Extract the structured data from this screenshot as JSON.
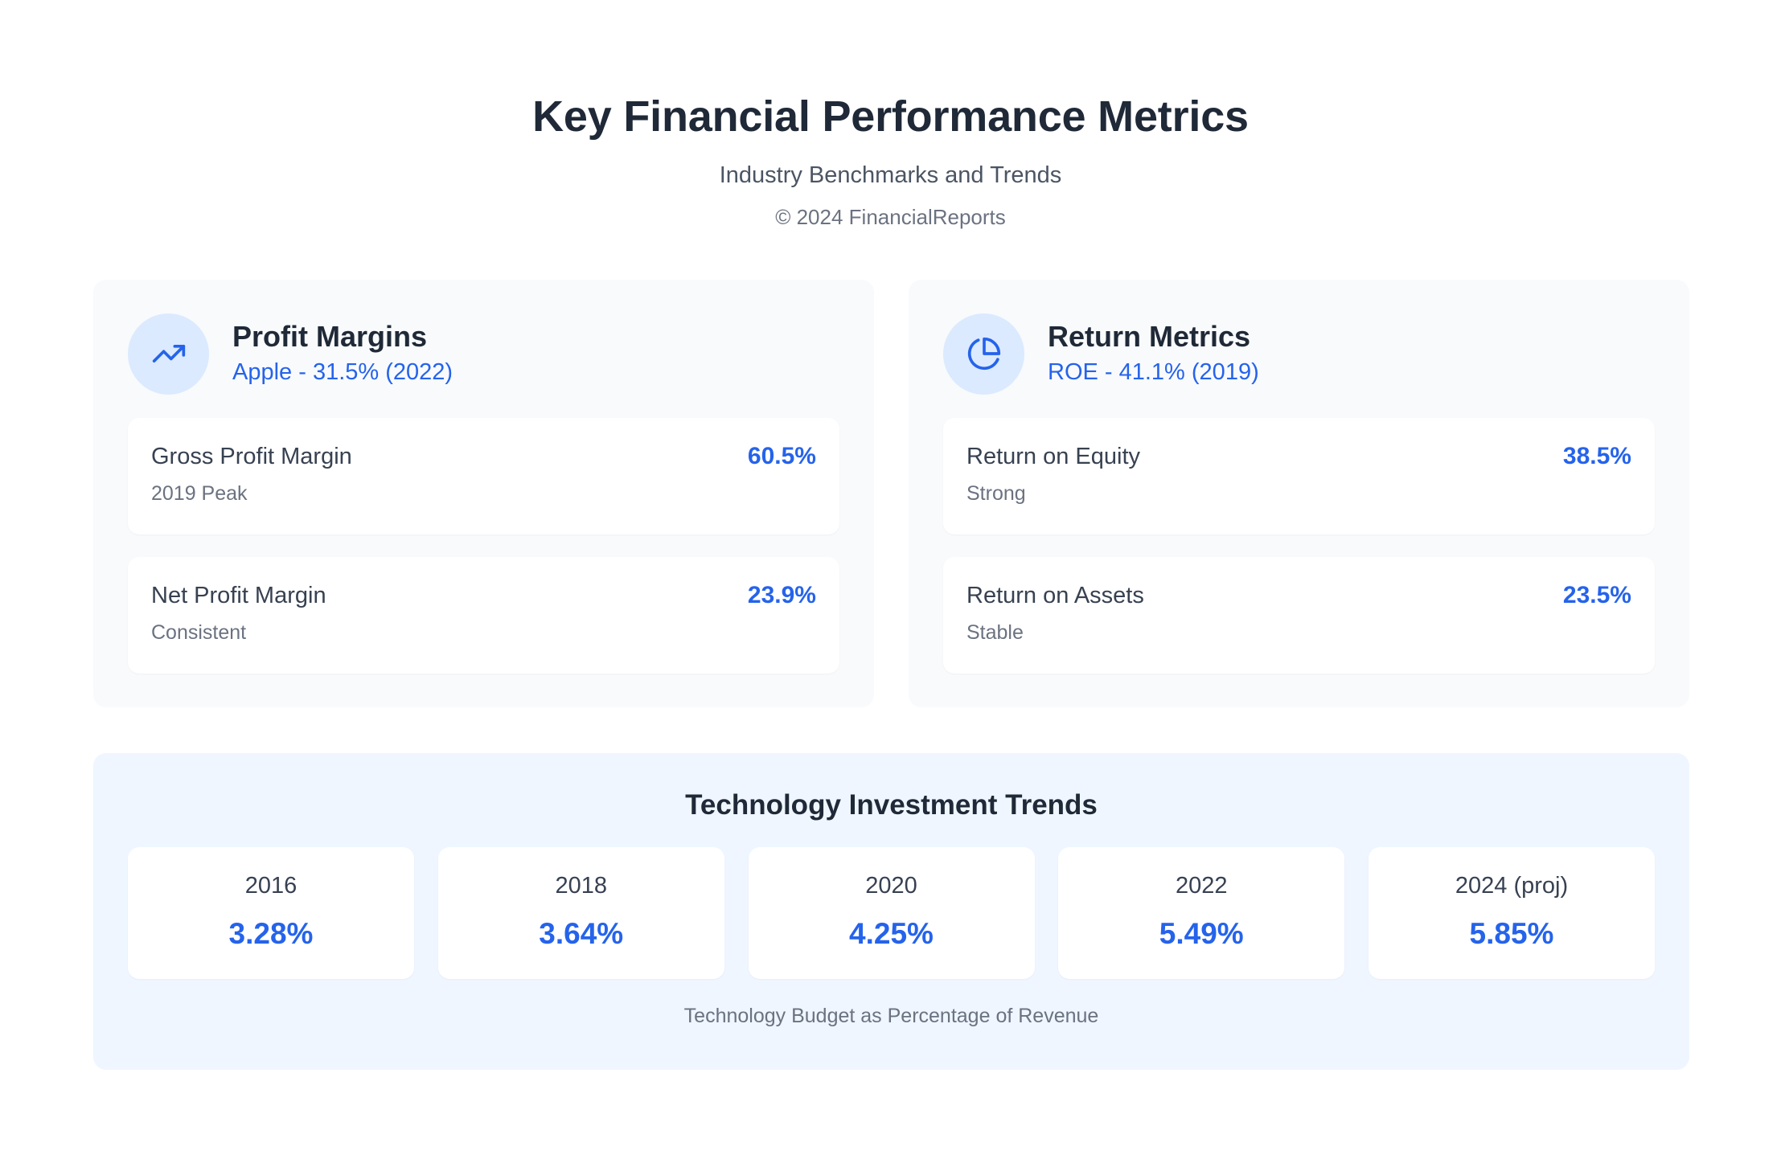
{
  "header": {
    "title": "Key Financial Performance Metrics",
    "subtitle": "Industry Benchmarks and Trends",
    "copyright": "© 2024 FinancialReports"
  },
  "profit_card": {
    "icon": "trending-up-icon",
    "title": "Profit Margins",
    "highlight": "Apple - 31.5% (2022)",
    "metrics": [
      {
        "name": "Gross Profit Margin",
        "note": "2019 Peak",
        "value": "60.5%"
      },
      {
        "name": "Net Profit Margin",
        "note": "Consistent",
        "value": "23.9%"
      }
    ]
  },
  "return_card": {
    "icon": "pie-chart-icon",
    "title": "Return Metrics",
    "highlight": "ROE - 41.1% (2019)",
    "metrics": [
      {
        "name": "Return on Equity",
        "note": "Strong",
        "value": "38.5%"
      },
      {
        "name": "Return on Assets",
        "note": "Stable",
        "value": "23.5%"
      }
    ]
  },
  "trends": {
    "title": "Technology Investment Trends",
    "items": [
      {
        "year": "2016",
        "value": "3.28%"
      },
      {
        "year": "2018",
        "value": "3.64%"
      },
      {
        "year": "2020",
        "value": "4.25%"
      },
      {
        "year": "2022",
        "value": "5.49%"
      },
      {
        "year": "2024 (proj)",
        "value": "5.85%"
      }
    ],
    "caption": "Technology Budget as Percentage of Revenue"
  },
  "colors": {
    "accent": "#2563eb",
    "icon_bg": "#dbeafe",
    "card_bg": "#f8fafc",
    "trends_bg": "#eff6ff"
  }
}
